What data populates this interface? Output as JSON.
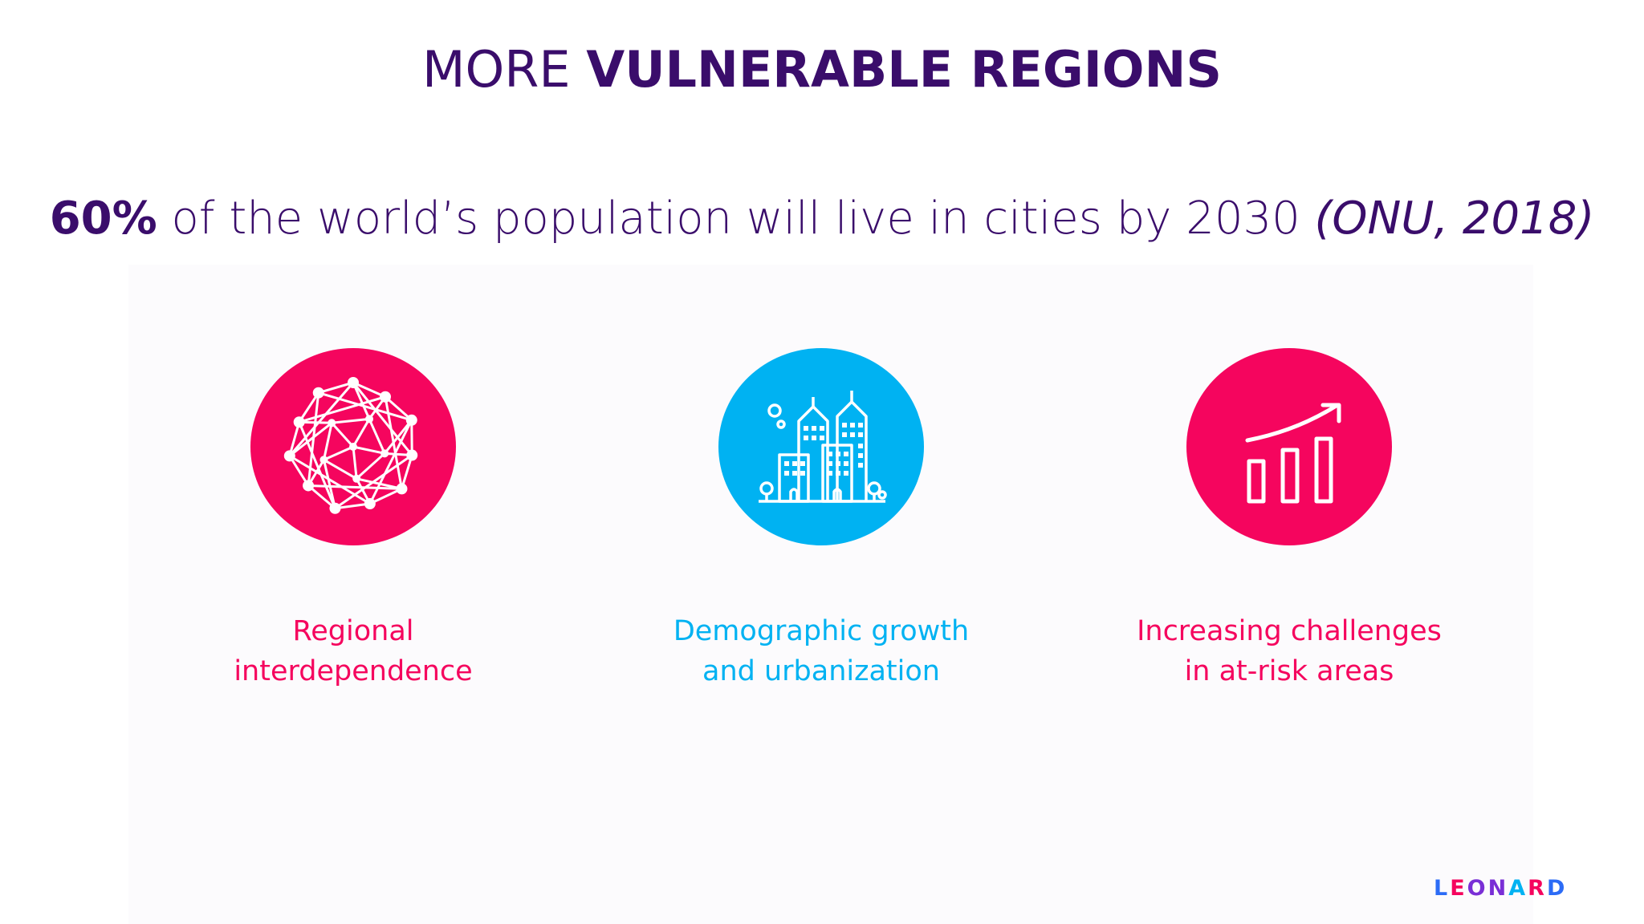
{
  "title": {
    "light": "MORE ",
    "bold": "VULNERABLE REGIONS"
  },
  "subtitle": {
    "percent": "60%",
    "text": " of the world’s population will live in cities by 2030 ",
    "source": "(ONU, 2018)"
  },
  "pillars": [
    {
      "icon": "network-icon",
      "color": "#f5055e",
      "line1": "Regional",
      "line2": "interdependence"
    },
    {
      "icon": "city-icon",
      "color": "#00b2f2",
      "line1": "Demographic growth",
      "line2": "and urbanization"
    },
    {
      "icon": "growth-chart-icon",
      "color": "#f5055e",
      "line1": "Increasing challenges",
      "line2": "in at-risk areas"
    }
  ],
  "logo": {
    "text": "LEONARD",
    "colors": [
      "#2c6cf6",
      "#f5055e",
      "#7a2fd6",
      "#00b2f2"
    ]
  }
}
